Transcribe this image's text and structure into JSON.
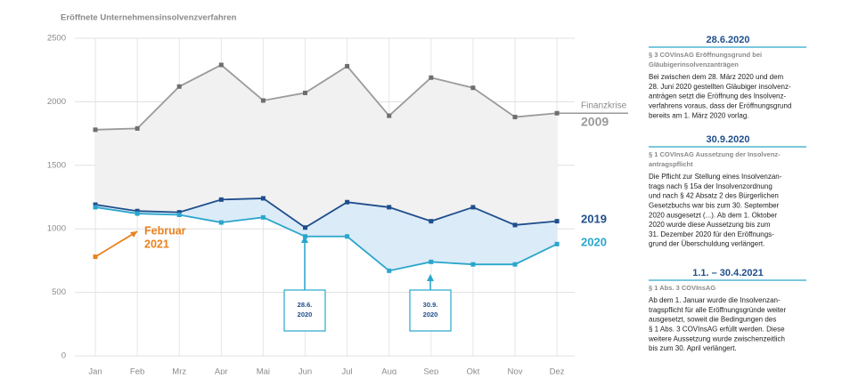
{
  "chart_data": {
    "type": "line",
    "title": "Eröffnete Unternehmensinsolvenzverfahren",
    "categories": [
      "Jan",
      "Feb",
      "Mrz",
      "Apr",
      "Mai",
      "Jun",
      "Jul",
      "Aug",
      "Sep",
      "Okt",
      "Nov",
      "Dez"
    ],
    "series": [
      {
        "name": "2009",
        "color": "#9a9a9a",
        "values": [
          1780,
          1790,
          2120,
          2290,
          2010,
          2070,
          2280,
          1890,
          2190,
          2110,
          1880,
          1910
        ]
      },
      {
        "name": "2019",
        "color": "#1f4e8c",
        "values": [
          1190,
          1140,
          1130,
          1230,
          1240,
          1010,
          1210,
          1170,
          1060,
          1170,
          1030,
          1060
        ]
      },
      {
        "name": "2020",
        "color": "#2aa6cc",
        "values": [
          1170,
          1120,
          1110,
          1050,
          1090,
          940,
          940,
          670,
          740,
          720,
          720,
          880
        ]
      },
      {
        "name": "2021",
        "color": "#e8821e",
        "values": [
          780,
          980,
          null,
          null,
          null,
          null,
          null,
          null,
          null,
          null,
          null,
          null
        ]
      }
    ],
    "ylim": [
      0,
      2500
    ],
    "yticks": [
      0,
      500,
      1000,
      1500,
      2000,
      2500
    ],
    "grid": true,
    "annotations": {
      "crisis": "Finanzkrise",
      "february": "Februar",
      "boxes": [
        [
          "28.6.",
          "2020"
        ],
        [
          "30.9.",
          "2020"
        ]
      ]
    }
  },
  "side_panel": [
    {
      "heading": "28.6.2020",
      "subheading": [
        "§ 3 COVInsAG Eröffnungsgrund bei",
        "Gläubigerinsolvenzanträgen"
      ],
      "body": [
        "Bei zwischen dem 28. März 2020 und dem",
        "28. Juni 2020 gestellten Gläubiger insolvenz-",
        "anträgen setzt die Eröffnung des Insolvenz-",
        "verfahrens voraus, dass der Eröffnungsgrund",
        "bereits am 1. März 2020 vorlag."
      ]
    },
    {
      "heading": "30.9.2020",
      "subheading": [
        "§ 1 COVInsAG Aussetzung der Insolvenz-",
        "antragspflicht"
      ],
      "body": [
        "Die Pflicht zur Stellung eines Insolvenzan-",
        "trags nach § 15a der Insolvenzordnung",
        "und nach § 42 Absatz 2 des Bürgerlichen",
        "Gesetzbuchs war bis zum 30. September",
        "2020 ausgesetzt (...). Ab dem 1. Oktober",
        "2020 wurde diese Aussetzung bis zum",
        "31. Dezember 2020 für den Eröffnungs-",
        "grund der Überschuldung verlängert."
      ]
    },
    {
      "heading": "1.1. – 30.4.2021",
      "subheading": [
        "§ 1 Abs. 3 COVInsAG"
      ],
      "body": [
        "Ab dem 1. Januar wurde die Insolvenzan-",
        "tragspflicht für alle Eröffnungsgründe weiter",
        "ausgesetzt, soweit die Bedingungen des",
        "§ 1 Abs. 3 COVInsAG erfüllt werden. Diese",
        "weitere Aussetzung wurde zwischenzeitlich",
        "bis zum 30. April verlängert."
      ]
    }
  ]
}
